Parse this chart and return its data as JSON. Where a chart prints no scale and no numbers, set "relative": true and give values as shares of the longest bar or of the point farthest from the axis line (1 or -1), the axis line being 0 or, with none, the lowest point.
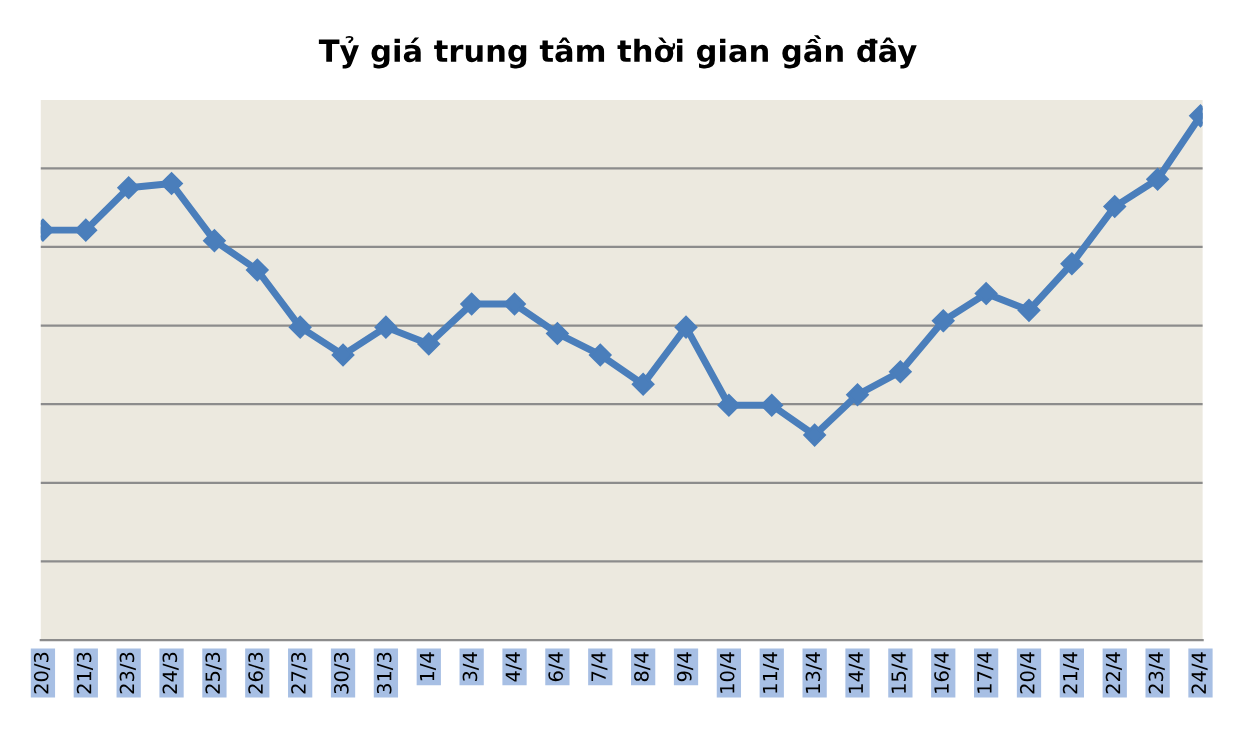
{
  "chart_data": {
    "type": "line",
    "title": "Tỷ giá trung tâm thời gian gần đây",
    "categories": [
      "20/3",
      "21/3",
      "23/3",
      "24/3",
      "25/3",
      "26/3",
      "27/3",
      "30/3",
      "31/3",
      "1/4",
      "3/4",
      "4/4",
      "6/4",
      "7/4",
      "8/4",
      "9/4",
      "10/4",
      "11/4",
      "13/4",
      "14/4",
      "15/4",
      "16/4",
      "17/4",
      "20/4",
      "21/4",
      "22/4",
      "23/4",
      "24/4"
    ],
    "relative": true,
    "series": [
      {
        "color": "#4a7ebb",
        "values": [
          0.782,
          0.782,
          0.863,
          0.871,
          0.762,
          0.706,
          0.597,
          0.544,
          0.597,
          0.565,
          0.641,
          0.641,
          0.585,
          0.544,
          0.488,
          0.597,
          0.448,
          0.448,
          0.391,
          0.468,
          0.512,
          0.609,
          0.661,
          0.629,
          0.718,
          0.827,
          0.879,
          1
        ]
      }
    ],
    "marker": "diamond",
    "line_style": "solid",
    "grid": "y"
  }
}
